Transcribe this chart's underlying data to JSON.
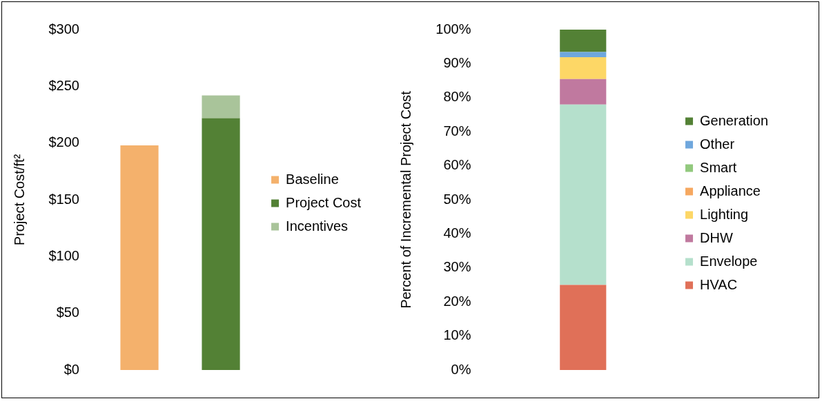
{
  "chart_data": [
    {
      "type": "bar",
      "ylabel": "Project Cost/ft²",
      "categories": [
        null,
        null
      ],
      "stacked": true,
      "tick_labels": "y",
      "grid": false,
      "legend": "right",
      "ylim": [
        0,
        300
      ],
      "yticks": [
        {
          "value": 0,
          "label": "$0"
        },
        {
          "value": 50,
          "label": "$50"
        },
        {
          "value": 100,
          "label": "$100"
        },
        {
          "value": 150,
          "label": "$150"
        },
        {
          "value": 200,
          "label": "$200"
        },
        {
          "value": 250,
          "label": "$250"
        },
        {
          "value": 300,
          "label": "$300"
        }
      ],
      "series": [
        {
          "name": "Baseline",
          "color": "#f4b16c",
          "values": [
            198,
            null
          ]
        },
        {
          "name": "Project Cost",
          "color": "#538135",
          "values": [
            null,
            222
          ]
        },
        {
          "name": "Incentives",
          "color": "#a9c49a",
          "values": [
            null,
            20
          ]
        }
      ]
    },
    {
      "type": "bar",
      "ylabel": "Percent of Incremental Project Cost",
      "categories": [
        null
      ],
      "stacked": true,
      "tick_labels": "y",
      "grid": false,
      "legend": "right",
      "ylim": [
        0,
        100
      ],
      "yticks": [
        {
          "value": 0,
          "label": "0%"
        },
        {
          "value": 10,
          "label": "10%"
        },
        {
          "value": 20,
          "label": "20%"
        },
        {
          "value": 30,
          "label": "30%"
        },
        {
          "value": 40,
          "label": "40%"
        },
        {
          "value": 50,
          "label": "50%"
        },
        {
          "value": 60,
          "label": "60%"
        },
        {
          "value": 70,
          "label": "70%"
        },
        {
          "value": 80,
          "label": "80%"
        },
        {
          "value": 90,
          "label": "90%"
        },
        {
          "value": 100,
          "label": "100%"
        }
      ],
      "series": [
        {
          "name": "HVAC",
          "color": "#e07058",
          "values": [
            25
          ]
        },
        {
          "name": "Envelope",
          "color": "#b5e0cc",
          "values": [
            53
          ]
        },
        {
          "name": "DHW",
          "color": "#c0799f",
          "values": [
            7.5
          ]
        },
        {
          "name": "Lighting",
          "color": "#fdd766",
          "values": [
            6.4
          ]
        },
        {
          "name": "Appliance",
          "color": "#f6a860",
          "values": [
            0
          ]
        },
        {
          "name": "Smart",
          "color": "#92c97e",
          "values": [
            0
          ]
        },
        {
          "name": "Other",
          "color": "#6fa7dd",
          "values": [
            1.5
          ]
        },
        {
          "name": "Generation",
          "color": "#538135",
          "values": [
            6.6
          ]
        }
      ]
    }
  ]
}
